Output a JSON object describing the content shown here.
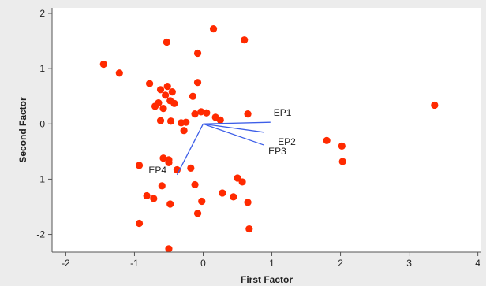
{
  "chart_data": {
    "type": "scatter",
    "xlabel": "First Factor",
    "ylabel": "Second Factor",
    "xlim": [
      -2.2,
      4.05
    ],
    "ylim": [
      -2.32,
      2.1
    ],
    "x_ticks": [
      -2,
      -1,
      0,
      1,
      2,
      3,
      4
    ],
    "y_ticks": [
      2,
      1,
      0,
      -1,
      -2
    ],
    "grid": false,
    "point_color": "#ff2a00",
    "vector_color": "#3d5ee8",
    "points": [
      {
        "x": 0.15,
        "y": 1.72
      },
      {
        "x": 0.6,
        "y": 1.52
      },
      {
        "x": -0.53,
        "y": 1.48
      },
      {
        "x": -0.08,
        "y": 1.28
      },
      {
        "x": -1.45,
        "y": 1.08
      },
      {
        "x": -1.22,
        "y": 0.92
      },
      {
        "x": -0.08,
        "y": 0.75
      },
      {
        "x": -0.78,
        "y": 0.73
      },
      {
        "x": -0.52,
        "y": 0.68
      },
      {
        "x": -0.62,
        "y": 0.62
      },
      {
        "x": -0.45,
        "y": 0.58
      },
      {
        "x": -0.55,
        "y": 0.52
      },
      {
        "x": -0.15,
        "y": 0.5
      },
      {
        "x": -0.48,
        "y": 0.42
      },
      {
        "x": -0.42,
        "y": 0.37
      },
      {
        "x": -0.65,
        "y": 0.38
      },
      {
        "x": -0.7,
        "y": 0.32
      },
      {
        "x": -0.58,
        "y": 0.28
      },
      {
        "x": -0.03,
        "y": 0.22
      },
      {
        "x": 0.05,
        "y": 0.2
      },
      {
        "x": -0.12,
        "y": 0.18
      },
      {
        "x": 0.65,
        "y": 0.18
      },
      {
        "x": 0.18,
        "y": 0.12
      },
      {
        "x": 0.25,
        "y": 0.07
      },
      {
        "x": -0.47,
        "y": 0.05
      },
      {
        "x": -0.62,
        "y": 0.06
      },
      {
        "x": -0.32,
        "y": 0.02
      },
      {
        "x": -0.25,
        "y": 0.03
      },
      {
        "x": -0.28,
        "y": -0.12
      },
      {
        "x": 3.37,
        "y": 0.34
      },
      {
        "x": 1.8,
        "y": -0.3
      },
      {
        "x": 2.02,
        "y": -0.4
      },
      {
        "x": 2.03,
        "y": -0.68
      },
      {
        "x": -0.58,
        "y": -0.62
      },
      {
        "x": -0.5,
        "y": -0.65
      },
      {
        "x": -0.5,
        "y": -0.7
      },
      {
        "x": -0.38,
        "y": -0.83
      },
      {
        "x": -0.18,
        "y": -0.8
      },
      {
        "x": -0.93,
        "y": -0.75
      },
      {
        "x": 0.5,
        "y": -0.98
      },
      {
        "x": 0.57,
        "y": -1.05
      },
      {
        "x": -0.6,
        "y": -1.12
      },
      {
        "x": -0.12,
        "y": -1.1
      },
      {
        "x": 0.28,
        "y": -1.25
      },
      {
        "x": -0.82,
        "y": -1.3
      },
      {
        "x": -0.72,
        "y": -1.35
      },
      {
        "x": 0.44,
        "y": -1.32
      },
      {
        "x": -0.02,
        "y": -1.4
      },
      {
        "x": 0.65,
        "y": -1.42
      },
      {
        "x": -0.48,
        "y": -1.45
      },
      {
        "x": -0.08,
        "y": -1.62
      },
      {
        "x": -0.93,
        "y": -1.8
      },
      {
        "x": 0.67,
        "y": -1.9
      },
      {
        "x": -0.5,
        "y": -2.26
      }
    ],
    "vectors": [
      {
        "name": "EP1",
        "x": 0.98,
        "y": 0.03
      },
      {
        "name": "EP2",
        "x": 0.88,
        "y": -0.15
      },
      {
        "name": "EP3",
        "x": 0.88,
        "y": -0.38
      },
      {
        "name": "EP4",
        "x": -0.38,
        "y": -0.92
      }
    ]
  }
}
